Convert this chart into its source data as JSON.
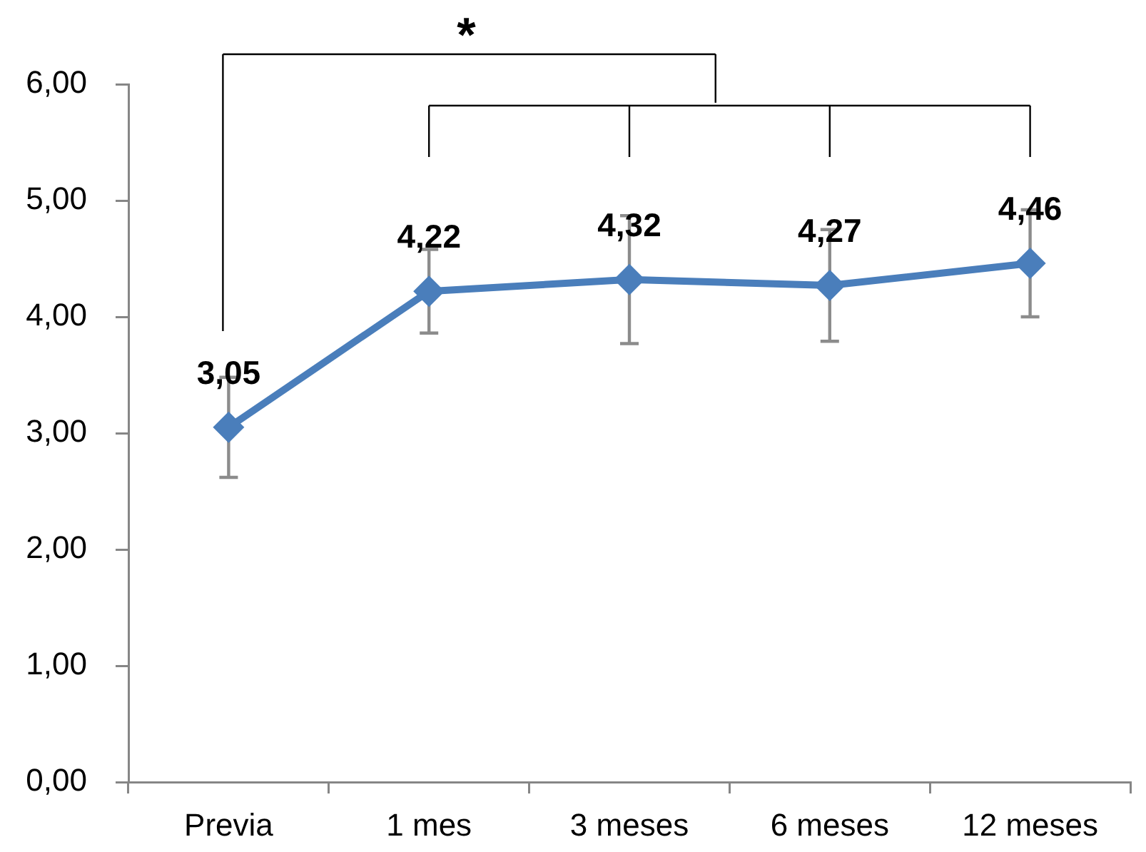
{
  "chart_data": {
    "type": "line",
    "categories": [
      "Previa",
      "1 mes",
      "3 meses",
      "6 meses",
      "12 meses"
    ],
    "values": [
      3.05,
      4.22,
      4.32,
      4.27,
      4.46
    ],
    "color": "#4a7ebb",
    "errors": [
      0.43,
      0.36,
      0.55,
      0.48,
      0.46
    ],
    "value_labels": [
      "3,05",
      "4,22",
      "4,32",
      "4,27",
      "4,46"
    ],
    "ylim": [
      0,
      6
    ],
    "yticks": [
      {
        "value": 0,
        "label": "0,00"
      },
      {
        "value": 1,
        "label": "1,00"
      },
      {
        "value": 2,
        "label": "2,00"
      },
      {
        "value": 3,
        "label": "3,00"
      },
      {
        "value": 4,
        "label": "4,00"
      },
      {
        "value": 5,
        "label": "5,00"
      },
      {
        "value": 6,
        "label": "6,00"
      }
    ],
    "marker": "diamond",
    "line_style": "solid",
    "grid": false,
    "legend": false,
    "annotations": [
      "*"
    ]
  }
}
